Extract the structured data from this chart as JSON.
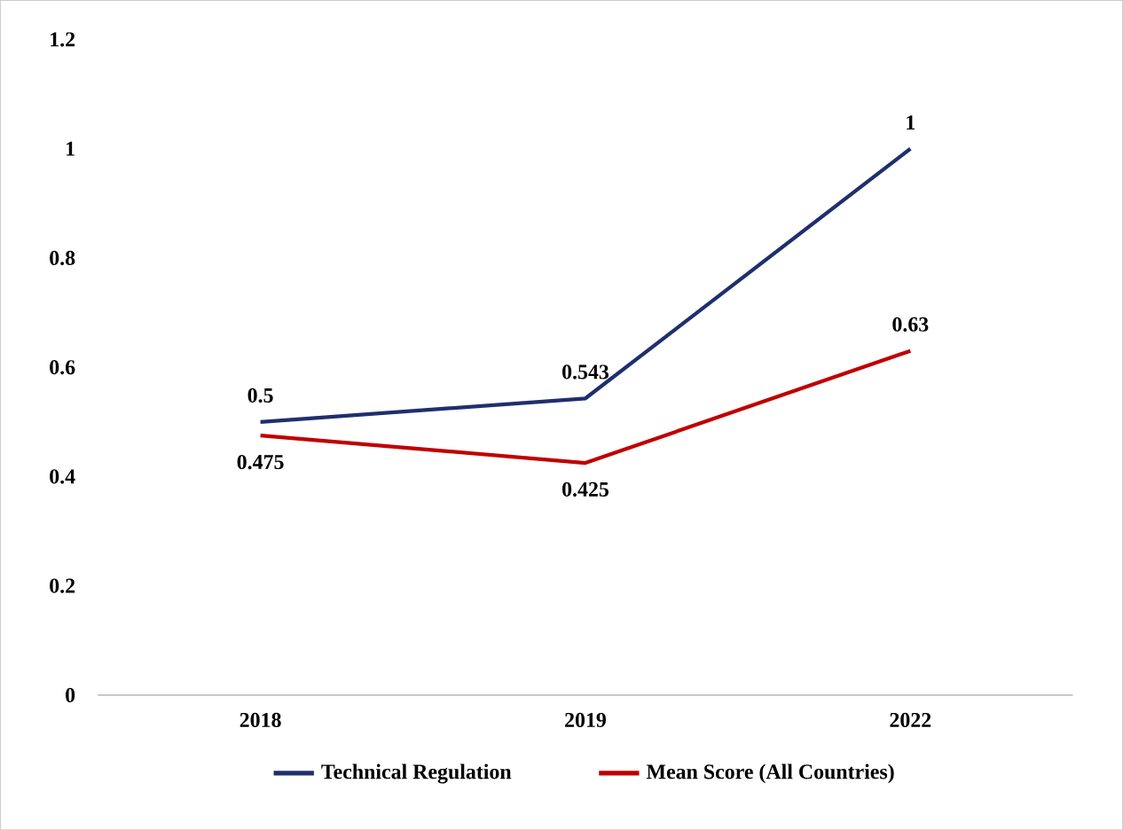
{
  "chart_data": {
    "type": "line",
    "categories": [
      "2018",
      "2019",
      "2022"
    ],
    "series": [
      {
        "name": "Technical Regulation",
        "color": "#1f2f6e",
        "values": [
          0.5,
          0.543,
          1
        ]
      },
      {
        "name": "Mean Score (All Countries)",
        "color": "#c00000",
        "values": [
          0.475,
          0.425,
          0.63
        ]
      }
    ],
    "ylim": [
      0,
      1.2
    ],
    "yticks": [
      0,
      0.2,
      0.4,
      0.6,
      0.8,
      1,
      1.2
    ],
    "data_labels": true,
    "legend": "bottom",
    "grid": false,
    "marker": "none",
    "line_style": "solid"
  }
}
